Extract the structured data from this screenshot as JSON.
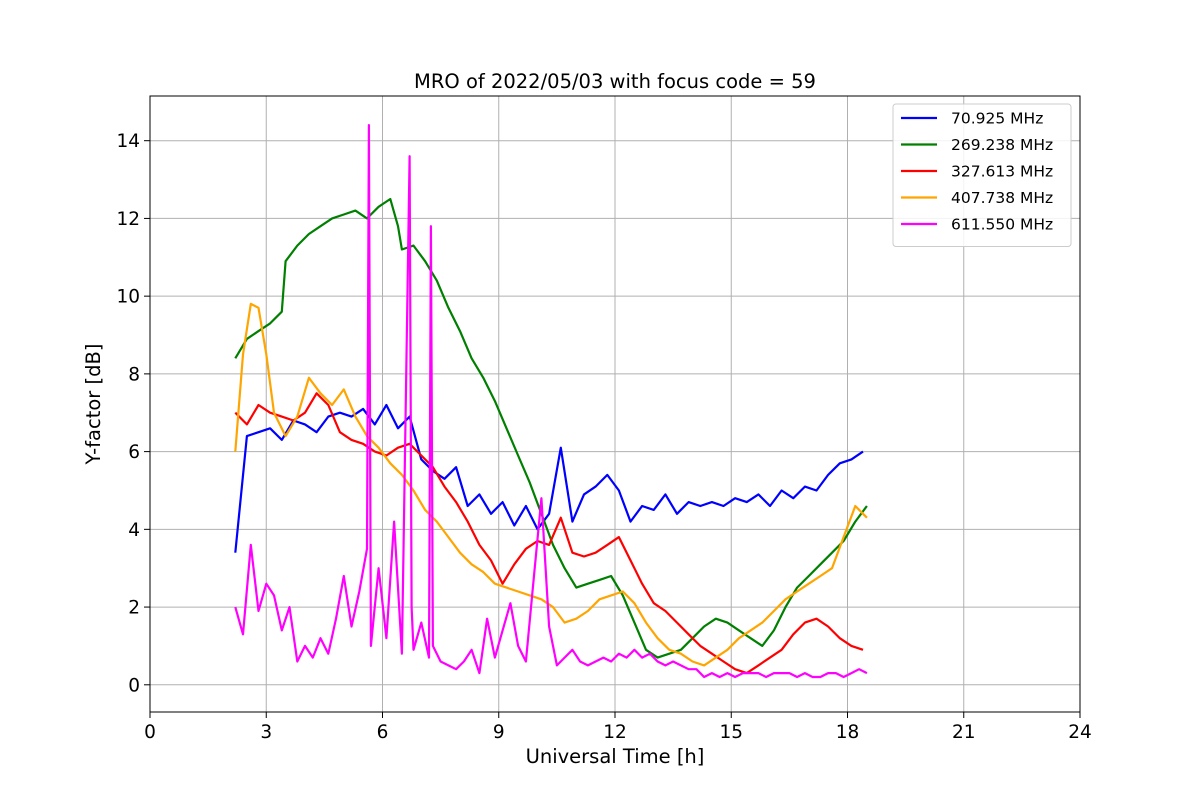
{
  "chart_data": {
    "type": "line",
    "title": "MRO of 2022/05/03 with focus code = 59",
    "xlabel": "Universal Time [h]",
    "ylabel": "Y-factor [dB]",
    "xlim": [
      0,
      24
    ],
    "ylim": [
      -0.7,
      15.15
    ],
    "xticks": [
      0,
      3,
      6,
      9,
      12,
      15,
      18,
      21,
      24
    ],
    "yticks": [
      0,
      2,
      4,
      6,
      8,
      10,
      12,
      14
    ],
    "grid": true,
    "legend_position": "top-right",
    "series": [
      {
        "name": "70.925 MHz",
        "color": "#0000ff",
        "x": [
          2.2,
          2.5,
          2.8,
          3.1,
          3.4,
          3.7,
          4.0,
          4.3,
          4.6,
          4.9,
          5.2,
          5.5,
          5.8,
          6.1,
          6.4,
          6.7,
          7.0,
          7.3,
          7.6,
          7.9,
          8.2,
          8.5,
          8.8,
          9.1,
          9.4,
          9.7,
          10.0,
          10.3,
          10.6,
          10.9,
          11.2,
          11.5,
          11.8,
          12.1,
          12.4,
          12.7,
          13.0,
          13.3,
          13.6,
          13.9,
          14.2,
          14.5,
          14.8,
          15.1,
          15.4,
          15.7,
          16.0,
          16.3,
          16.6,
          16.9,
          17.2,
          17.5,
          17.8,
          18.1,
          18.4
        ],
        "y": [
          3.4,
          6.4,
          6.5,
          6.6,
          6.3,
          6.8,
          6.7,
          6.5,
          6.9,
          7.0,
          6.9,
          7.1,
          6.7,
          7.2,
          6.6,
          6.9,
          5.8,
          5.5,
          5.3,
          5.6,
          4.6,
          4.9,
          4.4,
          4.7,
          4.1,
          4.6,
          4.0,
          4.4,
          6.1,
          4.2,
          4.9,
          5.1,
          5.4,
          5.0,
          4.2,
          4.6,
          4.5,
          4.9,
          4.4,
          4.7,
          4.6,
          4.7,
          4.6,
          4.8,
          4.7,
          4.9,
          4.6,
          5.0,
          4.8,
          5.1,
          5.0,
          5.4,
          5.7,
          5.8,
          6.0
        ]
      },
      {
        "name": "269.238 MHz",
        "color": "#008000",
        "x": [
          2.2,
          2.5,
          2.8,
          3.1,
          3.4,
          3.5,
          3.8,
          4.1,
          4.4,
          4.7,
          5.0,
          5.3,
          5.6,
          5.9,
          6.2,
          6.4,
          6.5,
          6.8,
          7.1,
          7.4,
          7.7,
          8.0,
          8.3,
          8.6,
          8.9,
          9.2,
          9.5,
          9.8,
          10.1,
          10.4,
          10.7,
          11.0,
          11.3,
          11.6,
          11.9,
          12.2,
          12.5,
          12.8,
          13.1,
          13.4,
          13.7,
          14.0,
          14.3,
          14.6,
          14.9,
          15.2,
          15.5,
          15.8,
          16.1,
          16.4,
          16.7,
          17.0,
          17.3,
          17.6,
          17.9,
          18.2,
          18.5
        ],
        "y": [
          8.4,
          8.9,
          9.1,
          9.3,
          9.6,
          10.9,
          11.3,
          11.6,
          11.8,
          12.0,
          12.1,
          12.2,
          12.0,
          12.3,
          12.5,
          11.8,
          11.2,
          11.3,
          10.9,
          10.4,
          9.7,
          9.1,
          8.4,
          7.9,
          7.3,
          6.6,
          5.9,
          5.2,
          4.4,
          3.6,
          3.0,
          2.5,
          2.6,
          2.7,
          2.8,
          2.3,
          1.6,
          0.9,
          0.7,
          0.8,
          0.9,
          1.2,
          1.5,
          1.7,
          1.6,
          1.4,
          1.2,
          1.0,
          1.4,
          2.0,
          2.5,
          2.8,
          3.1,
          3.4,
          3.7,
          4.2,
          4.6
        ]
      },
      {
        "name": "327.613 MHz",
        "color": "#ff0000",
        "x": [
          2.2,
          2.5,
          2.8,
          3.1,
          3.4,
          3.7,
          4.0,
          4.3,
          4.6,
          4.9,
          5.2,
          5.5,
          5.8,
          6.1,
          6.4,
          6.7,
          7.0,
          7.3,
          7.6,
          7.9,
          8.2,
          8.5,
          8.8,
          9.1,
          9.4,
          9.7,
          10.0,
          10.3,
          10.6,
          10.9,
          11.2,
          11.5,
          11.8,
          12.1,
          12.4,
          12.7,
          13.0,
          13.3,
          13.6,
          13.9,
          14.2,
          14.5,
          14.8,
          15.1,
          15.4,
          15.7,
          16.0,
          16.3,
          16.6,
          16.9,
          17.2,
          17.5,
          17.8,
          18.1,
          18.4
        ],
        "y": [
          7.0,
          6.7,
          7.2,
          7.0,
          6.9,
          6.8,
          7.0,
          7.5,
          7.2,
          6.5,
          6.3,
          6.2,
          6.0,
          5.9,
          6.1,
          6.2,
          5.9,
          5.6,
          5.1,
          4.7,
          4.2,
          3.6,
          3.2,
          2.6,
          3.1,
          3.5,
          3.7,
          3.6,
          4.3,
          3.4,
          3.3,
          3.4,
          3.6,
          3.8,
          3.2,
          2.6,
          2.1,
          1.9,
          1.6,
          1.3,
          1.0,
          0.8,
          0.6,
          0.4,
          0.3,
          0.5,
          0.7,
          0.9,
          1.3,
          1.6,
          1.7,
          1.5,
          1.2,
          1.0,
          0.9
        ]
      },
      {
        "name": "407.738 MHz",
        "color": "#ffa500",
        "x": [
          2.2,
          2.4,
          2.6,
          2.8,
          3.0,
          3.2,
          3.5,
          3.8,
          4.1,
          4.4,
          4.7,
          5.0,
          5.3,
          5.6,
          5.9,
          6.2,
          6.5,
          6.8,
          7.1,
          7.4,
          7.7,
          8.0,
          8.3,
          8.6,
          8.9,
          9.2,
          9.5,
          9.8,
          10.1,
          10.4,
          10.7,
          11.0,
          11.3,
          11.6,
          11.9,
          12.2,
          12.5,
          12.8,
          13.1,
          13.4,
          13.7,
          14.0,
          14.3,
          14.6,
          14.9,
          15.2,
          15.5,
          15.8,
          16.1,
          16.4,
          16.7,
          17.0,
          17.3,
          17.6,
          17.9,
          18.2,
          18.5
        ],
        "y": [
          6.0,
          8.5,
          9.8,
          9.7,
          8.5,
          7.0,
          6.4,
          6.9,
          7.9,
          7.5,
          7.2,
          7.6,
          6.9,
          6.4,
          6.1,
          5.7,
          5.4,
          5.0,
          4.5,
          4.2,
          3.8,
          3.4,
          3.1,
          2.9,
          2.6,
          2.5,
          2.4,
          2.3,
          2.2,
          2.0,
          1.6,
          1.7,
          1.9,
          2.2,
          2.3,
          2.4,
          2.1,
          1.6,
          1.2,
          0.9,
          0.8,
          0.6,
          0.5,
          0.7,
          0.9,
          1.2,
          1.4,
          1.6,
          1.9,
          2.2,
          2.4,
          2.6,
          2.8,
          3.0,
          3.8,
          4.6,
          4.3
        ]
      },
      {
        "name": "611.550 MHz",
        "color": "#ff00ff",
        "x": [
          2.2,
          2.4,
          2.6,
          2.8,
          3.0,
          3.2,
          3.4,
          3.6,
          3.8,
          4.0,
          4.2,
          4.4,
          4.6,
          4.8,
          5.0,
          5.2,
          5.4,
          5.6,
          5.65,
          5.7,
          5.9,
          6.1,
          6.3,
          6.5,
          6.7,
          6.75,
          6.8,
          7.0,
          7.2,
          7.25,
          7.3,
          7.5,
          7.7,
          7.9,
          8.1,
          8.3,
          8.5,
          8.7,
          8.9,
          9.1,
          9.3,
          9.5,
          9.7,
          9.9,
          10.1,
          10.3,
          10.5,
          10.7,
          10.9,
          11.1,
          11.3,
          11.5,
          11.7,
          11.9,
          12.1,
          12.3,
          12.5,
          12.7,
          12.9,
          13.1,
          13.3,
          13.5,
          13.7,
          13.9,
          14.1,
          14.3,
          14.5,
          14.7,
          14.9,
          15.1,
          15.3,
          15.5,
          15.7,
          15.9,
          16.1,
          16.3,
          16.5,
          16.7,
          16.9,
          17.1,
          17.3,
          17.5,
          17.7,
          17.9,
          18.1,
          18.3,
          18.5
        ],
        "y": [
          2.0,
          1.3,
          3.6,
          1.9,
          2.6,
          2.3,
          1.4,
          2.0,
          0.6,
          1.0,
          0.7,
          1.2,
          0.8,
          1.7,
          2.8,
          1.5,
          2.4,
          3.5,
          14.4,
          1.0,
          3.0,
          1.2,
          4.2,
          0.8,
          13.6,
          2.0,
          0.9,
          1.6,
          0.7,
          11.8,
          1.0,
          0.6,
          0.5,
          0.4,
          0.6,
          0.9,
          0.3,
          1.7,
          0.7,
          1.4,
          2.1,
          1.0,
          0.6,
          2.7,
          4.8,
          1.5,
          0.5,
          0.7,
          0.9,
          0.6,
          0.5,
          0.6,
          0.7,
          0.6,
          0.8,
          0.7,
          0.9,
          0.7,
          0.8,
          0.6,
          0.5,
          0.6,
          0.5,
          0.4,
          0.4,
          0.2,
          0.3,
          0.2,
          0.3,
          0.2,
          0.3,
          0.3,
          0.3,
          0.2,
          0.3,
          0.3,
          0.3,
          0.2,
          0.3,
          0.2,
          0.2,
          0.3,
          0.3,
          0.2,
          0.3,
          0.4,
          0.3
        ]
      }
    ]
  }
}
